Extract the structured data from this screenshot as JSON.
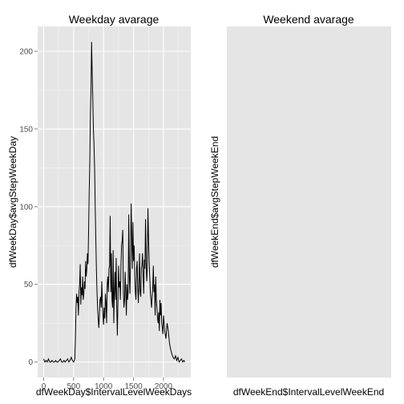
{
  "chart_data": [
    {
      "type": "line",
      "title": "Weekday avarage",
      "xlabel": "dfWeekDay$IntervalLevelWeekDays",
      "ylabel": "dfWeekDay$avgStepWeekDay",
      "xlim": [
        -100,
        2455
      ],
      "ylim": [
        -10,
        216
      ],
      "grid": true,
      "x_ticks": [
        0,
        500,
        1000,
        1500,
        2000
      ],
      "y_ticks": [
        0,
        50,
        100,
        150,
        200
      ],
      "x_tick_labels": [
        "0",
        "500",
        "1000",
        "1500",
        "2000"
      ],
      "y_tick_labels": [
        "0",
        "50",
        "100",
        "150",
        "200"
      ],
      "series": [
        {
          "color": "#000000",
          "x": [
            0,
            20,
            40,
            60,
            80,
            100,
            120,
            140,
            160,
            180,
            200,
            220,
            240,
            260,
            280,
            300,
            320,
            340,
            360,
            380,
            400,
            420,
            440,
            460,
            480,
            500,
            520,
            530,
            540,
            550,
            560,
            570,
            580,
            590,
            600,
            610,
            620,
            630,
            640,
            650,
            660,
            670,
            680,
            690,
            700,
            710,
            720,
            730,
            740,
            750,
            760,
            770,
            780,
            790,
            800,
            810,
            820,
            830,
            840,
            850,
            860,
            870,
            880,
            890,
            900,
            910,
            920,
            930,
            940,
            950,
            960,
            970,
            980,
            990,
            1000,
            1010,
            1020,
            1030,
            1040,
            1050,
            1060,
            1070,
            1080,
            1090,
            1100,
            1110,
            1120,
            1130,
            1140,
            1150,
            1160,
            1170,
            1180,
            1190,
            1200,
            1210,
            1220,
            1230,
            1240,
            1250,
            1260,
            1270,
            1280,
            1290,
            1300,
            1310,
            1320,
            1330,
            1340,
            1350,
            1360,
            1370,
            1380,
            1390,
            1400,
            1410,
            1420,
            1430,
            1440,
            1450,
            1460,
            1470,
            1480,
            1490,
            1500,
            1510,
            1520,
            1530,
            1540,
            1550,
            1560,
            1570,
            1580,
            1590,
            1600,
            1610,
            1620,
            1630,
            1640,
            1650,
            1660,
            1670,
            1680,
            1690,
            1700,
            1710,
            1720,
            1730,
            1740,
            1750,
            1760,
            1770,
            1780,
            1790,
            1800,
            1810,
            1820,
            1830,
            1840,
            1850,
            1860,
            1870,
            1880,
            1890,
            1900,
            1910,
            1920,
            1930,
            1940,
            1950,
            1960,
            1970,
            1980,
            1990,
            2000,
            2020,
            2040,
            2060,
            2080,
            2100,
            2120,
            2140,
            2160,
            2180,
            2200,
            2220,
            2240,
            2260,
            2280,
            2300,
            2320,
            2340,
            2355
          ],
          "y": [
            2,
            0,
            1,
            0,
            2,
            0,
            0,
            1,
            0,
            0,
            1,
            0,
            0,
            1,
            2,
            0,
            0,
            1,
            0,
            1,
            2,
            0,
            1,
            3,
            1,
            0,
            2,
            15,
            35,
            44,
            38,
            42,
            30,
            45,
            50,
            63,
            37,
            48,
            43,
            55,
            40,
            44,
            52,
            47,
            65,
            55,
            60,
            70,
            63,
            85,
            110,
            130,
            160,
            175,
            206,
            185,
            170,
            150,
            140,
            125,
            100,
            80,
            60,
            45,
            35,
            28,
            22,
            30,
            40,
            42,
            35,
            52,
            38,
            30,
            24,
            35,
            28,
            44,
            38,
            25,
            50,
            55,
            45,
            60,
            62,
            94,
            45,
            70,
            40,
            35,
            72,
            25,
            45,
            58,
            40,
            67,
            35,
            17,
            40,
            62,
            48,
            52,
            40,
            62,
            75,
            78,
            85,
            45,
            35,
            40,
            58,
            45,
            30,
            50,
            40,
            45,
            95,
            55,
            44,
            65,
            102,
            80,
            60,
            90,
            65,
            75,
            55,
            45,
            40,
            60,
            65,
            48,
            38,
            52,
            70,
            45,
            42,
            60,
            62,
            70,
            55,
            44,
            66,
            60,
            92,
            65,
            52,
            60,
            99,
            80,
            65,
            55,
            45,
            40,
            35,
            42,
            48,
            62,
            45,
            50,
            30,
            55,
            40,
            35,
            28,
            25,
            32,
            20,
            40,
            30,
            38,
            25,
            22,
            18,
            30,
            20,
            15,
            25,
            20,
            12,
            8,
            5,
            3,
            2,
            4,
            1,
            3,
            0,
            1,
            2,
            0,
            1,
            0
          ]
        }
      ]
    },
    {
      "type": "line",
      "title": "Weekend avarage",
      "xlabel": "dfWeekEnd$IntervalLevelWeekEnd",
      "ylabel": "dfWeekEnd$avgStepWeekEnd",
      "series": []
    }
  ]
}
